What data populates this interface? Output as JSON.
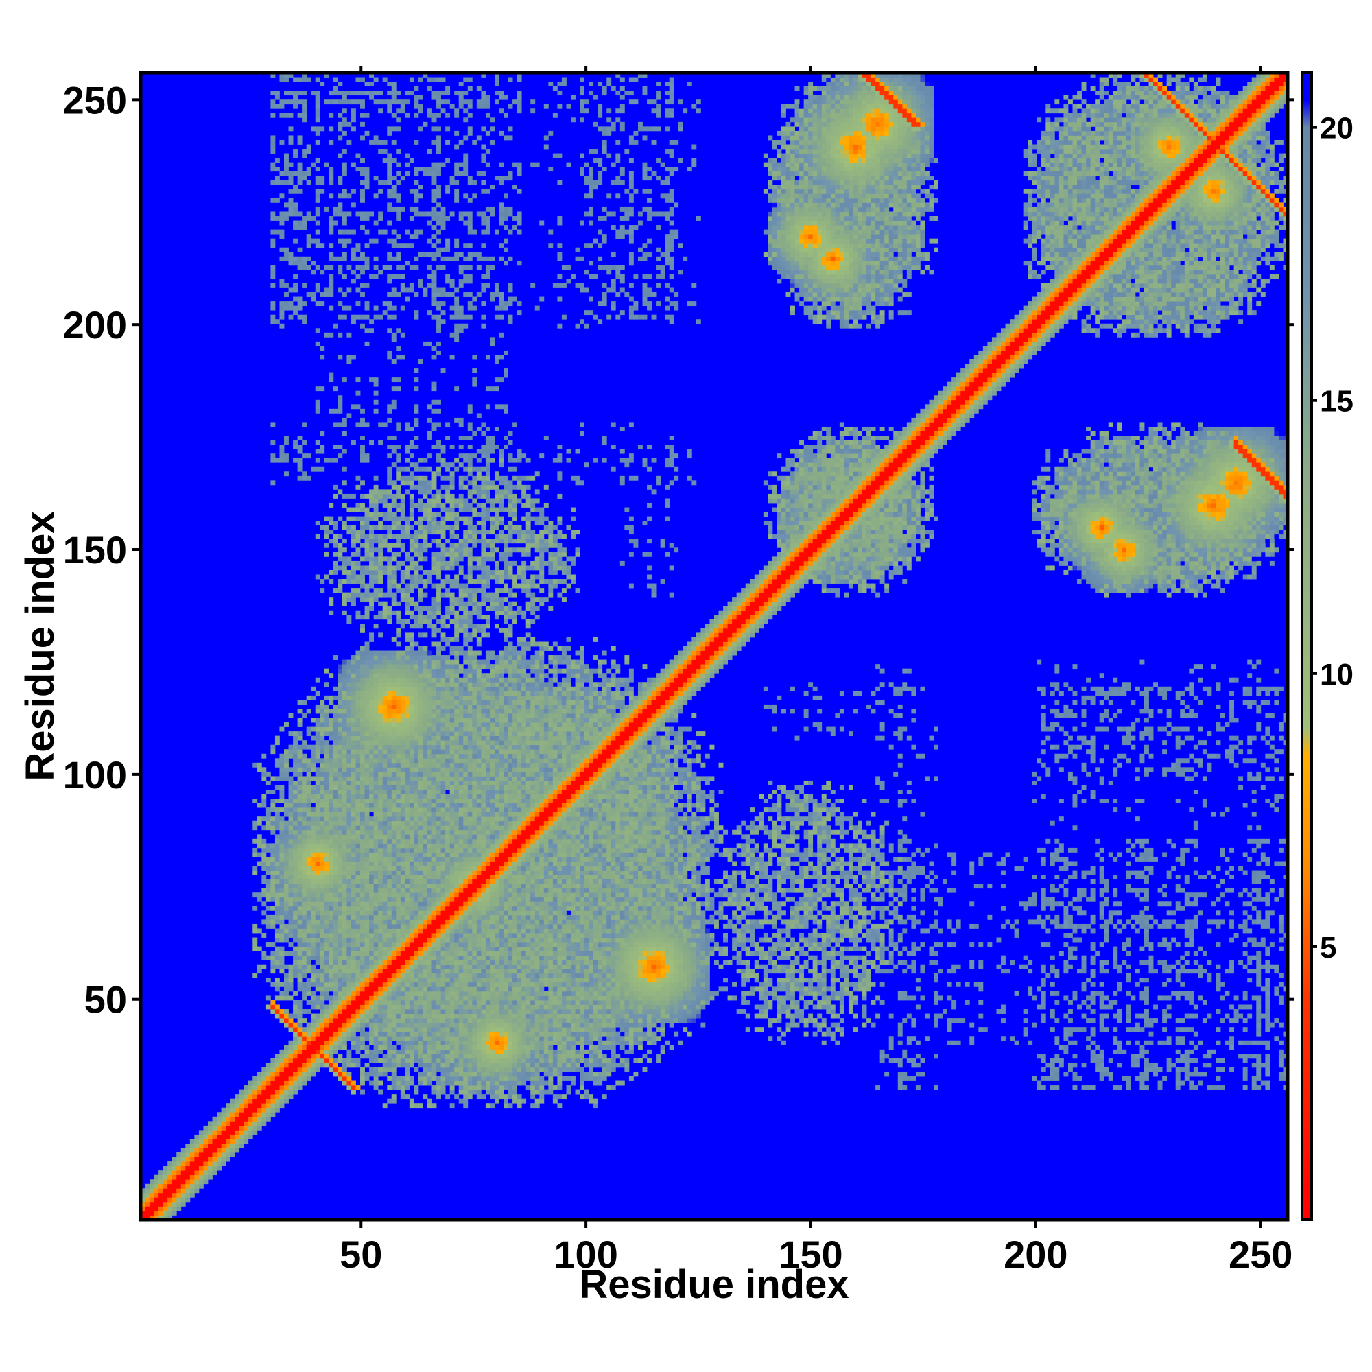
{
  "chart_data": {
    "type": "heatmap",
    "title": "",
    "xlabel": "Residue index",
    "ylabel": "Residue index",
    "n_residues": 256,
    "xlim": [
      1,
      256
    ],
    "ylim": [
      1,
      256
    ],
    "x_ticks": [
      50,
      100,
      150,
      200,
      250
    ],
    "y_ticks": [
      50,
      100,
      150,
      200,
      250
    ],
    "colorbar": {
      "ticks": [
        5,
        10,
        15,
        20
      ],
      "range": [
        0,
        21
      ],
      "stops": [
        {
          "value": 0,
          "color": "#ff0000"
        },
        {
          "value": 4,
          "color": "#ff3300"
        },
        {
          "value": 6.5,
          "color": "#ff8c00"
        },
        {
          "value": 8.5,
          "color": "#ffb000"
        },
        {
          "value": 9,
          "color": "#9fbf7a"
        },
        {
          "value": 14,
          "color": "#88aa88"
        },
        {
          "value": 17,
          "color": "#6f93b0"
        },
        {
          "value": 20,
          "color": "#6688aa"
        },
        {
          "value": 20.5,
          "color": "#0000ff"
        },
        {
          "value": 21,
          "color": "#0000ff"
        }
      ]
    },
    "background_value": 21,
    "diagonal_band": {
      "core": 1,
      "orange_width": 3,
      "green_width": 6
    },
    "contact_regions": [
      {
        "x": [
          28,
          130
        ],
        "y": [
          26,
          128
        ],
        "level": "blue-gray",
        "density": 0.97
      },
      {
        "x": [
          128,
          170
        ],
        "y": [
          40,
          98
        ],
        "level": "blue-gray",
        "density": 0.7
      },
      {
        "x": [
          142,
          175
        ],
        "y": [
          140,
          178
        ],
        "level": "blue-gray",
        "density": 0.9
      },
      {
        "x": [
          142,
          175
        ],
        "y": [
          200,
          256
        ],
        "level": "blue-gray",
        "density": 0.85
      },
      {
        "x": [
          198,
          256
        ],
        "y": [
          198,
          256
        ],
        "level": "blue-gray",
        "density": 0.85
      },
      {
        "x": [
          200,
          256
        ],
        "y": [
          140,
          178
        ],
        "level": "blue-gray",
        "density": 0.85
      }
    ],
    "sparse_regions": [
      {
        "x": [
          30,
          85
        ],
        "y": [
          200,
          256
        ],
        "density": 0.25
      },
      {
        "x": [
          88,
          125
        ],
        "y": [
          200,
          256
        ],
        "density": 0.2
      },
      {
        "x": [
          30,
          90
        ],
        "y": [
          165,
          178
        ],
        "density": 0.3
      },
      {
        "x": [
          90,
          125
        ],
        "y": [
          165,
          178
        ],
        "density": 0.2
      },
      {
        "x": [
          140,
          175
        ],
        "y": [
          108,
          120
        ],
        "density": 0.2
      },
      {
        "x": [
          200,
          256
        ],
        "y": [
          100,
          120
        ],
        "density": 0.25
      },
      {
        "x": [
          170,
          200
        ],
        "y": [
          40,
          82
        ],
        "density": 0.25
      },
      {
        "x": [
          200,
          256
        ],
        "y": [
          30,
          82
        ],
        "density": 0.3
      }
    ],
    "hotspots": [
      {
        "x": 57,
        "y": 115,
        "radius": 4
      },
      {
        "x": 115,
        "y": 57,
        "radius": 4
      },
      {
        "x": 40,
        "y": 80,
        "radius": 3
      },
      {
        "x": 80,
        "y": 40,
        "radius": 3
      },
      {
        "x": 75,
        "y": 75,
        "radius": 3
      },
      {
        "x": 160,
        "y": 240,
        "radius": 4
      },
      {
        "x": 245,
        "y": 165,
        "radius": 4
      },
      {
        "x": 220,
        "y": 150,
        "radius": 3
      },
      {
        "x": 155,
        "y": 215,
        "radius": 3
      },
      {
        "x": 240,
        "y": 230,
        "radius": 3
      }
    ],
    "anti_diagonals": [
      {
        "from": [
          30,
          48
        ],
        "to": [
          48,
          30
        ]
      },
      {
        "from": [
          163,
          256
        ],
        "to": [
          173,
          245
        ]
      },
      {
        "from": [
          225,
          256
        ],
        "to": [
          256,
          225
        ]
      },
      {
        "from": [
          245,
          174
        ],
        "to": [
          256,
          162
        ]
      }
    ]
  }
}
